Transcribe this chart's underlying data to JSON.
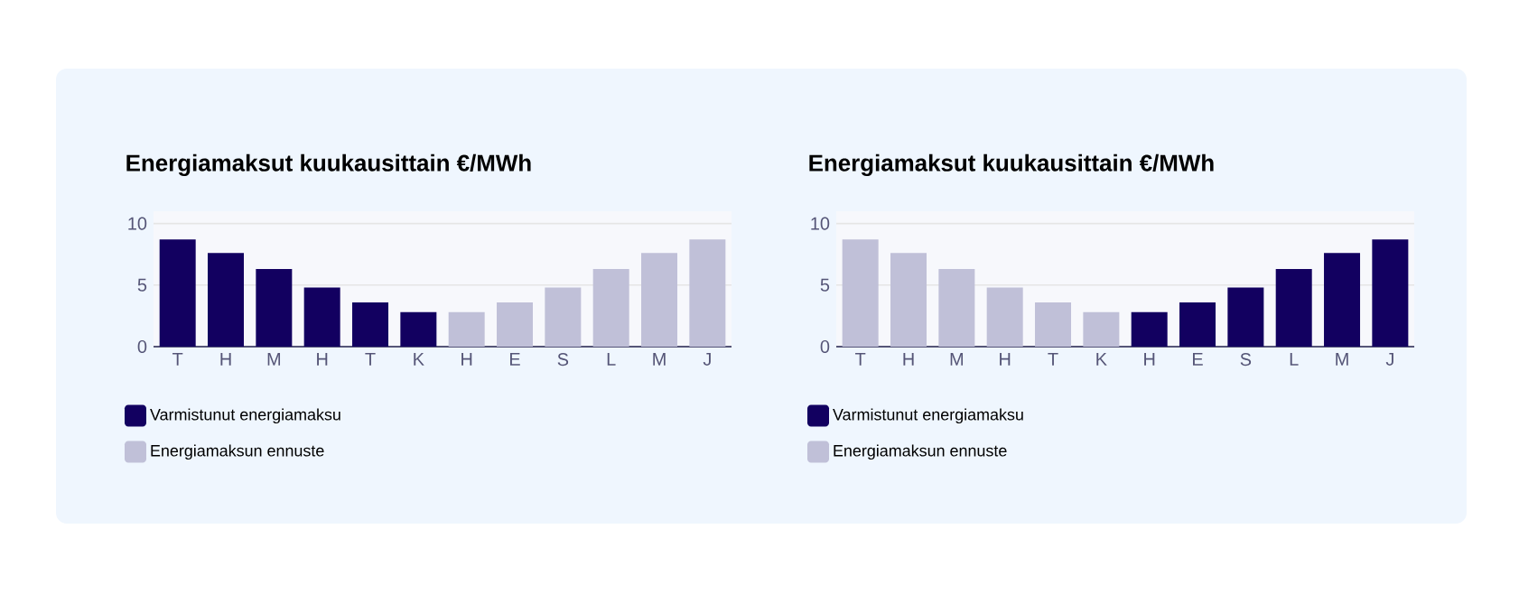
{
  "chart_data": [
    {
      "type": "bar",
      "title": "Energiamaksut kuukausittain €/MWh",
      "categories": [
        "T",
        "H",
        "M",
        "H",
        "T",
        "K",
        "H",
        "E",
        "S",
        "L",
        "M",
        "J"
      ],
      "series": [
        {
          "name": "Varmistunut energiamaksu",
          "color": "#120060",
          "values": [
            8.7,
            7.6,
            6.3,
            4.8,
            3.6,
            2.8,
            null,
            null,
            null,
            null,
            null,
            null
          ]
        },
        {
          "name": "Energiamaksun ennuste",
          "color": "#c0c0d8",
          "values": [
            null,
            null,
            null,
            null,
            null,
            null,
            2.8,
            3.6,
            4.8,
            6.3,
            7.6,
            8.7
          ]
        }
      ],
      "ylim": [
        0,
        11
      ],
      "yticks": [
        0,
        5,
        10
      ],
      "grid": "y",
      "legend": "bottom"
    },
    {
      "type": "bar",
      "title": "Energiamaksut kuukausittain €/MWh",
      "categories": [
        "T",
        "H",
        "M",
        "H",
        "T",
        "K",
        "H",
        "E",
        "S",
        "L",
        "M",
        "J"
      ],
      "series": [
        {
          "name": "Varmistunut energiamaksu",
          "color": "#120060",
          "values": [
            null,
            null,
            null,
            null,
            null,
            null,
            2.8,
            3.6,
            4.8,
            6.3,
            7.6,
            8.7
          ]
        },
        {
          "name": "Energiamaksun ennuste",
          "color": "#c0c0d8",
          "values": [
            8.7,
            7.6,
            6.3,
            4.8,
            3.6,
            2.8,
            null,
            null,
            null,
            null,
            null,
            null
          ]
        }
      ],
      "ylim": [
        0,
        11
      ],
      "yticks": [
        0,
        5,
        10
      ],
      "grid": "y",
      "legend": "bottom"
    }
  ]
}
